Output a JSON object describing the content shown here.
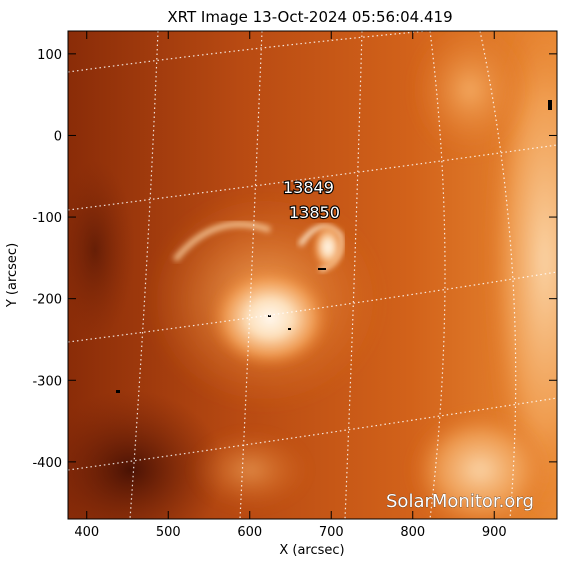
{
  "image": {
    "title": "XRT Image 13-Oct-2024 05:56:04.419",
    "xlabel": "X (arcsec)",
    "ylabel": "Y (arcsec)",
    "xlim": [
      377,
      977
    ],
    "ylim": [
      -470,
      128
    ],
    "x_ticks": [
      {
        "value": 400,
        "label": "400"
      },
      {
        "value": 500,
        "label": "500"
      },
      {
        "value": 600,
        "label": "600"
      },
      {
        "value": 700,
        "label": "700"
      },
      {
        "value": 800,
        "label": "800"
      },
      {
        "value": 900,
        "label": "900"
      }
    ],
    "y_ticks": [
      {
        "value": 100,
        "label": "100"
      },
      {
        "value": 0,
        "label": "0"
      },
      {
        "value": -100,
        "label": "-100"
      },
      {
        "value": -200,
        "label": "-200"
      },
      {
        "value": -300,
        "label": "-300"
      },
      {
        "value": -400,
        "label": "-400"
      }
    ],
    "colormap": [
      "#6e1e06",
      "#b84a10",
      "#e27420",
      "#f7b068",
      "#fff2e2"
    ],
    "grid": true,
    "grid_style": "dotted white heliographic lines"
  },
  "active_regions": [
    {
      "label": "13849"
    },
    {
      "label": "13850"
    }
  ],
  "watermark": "SolarMonitor.org"
}
